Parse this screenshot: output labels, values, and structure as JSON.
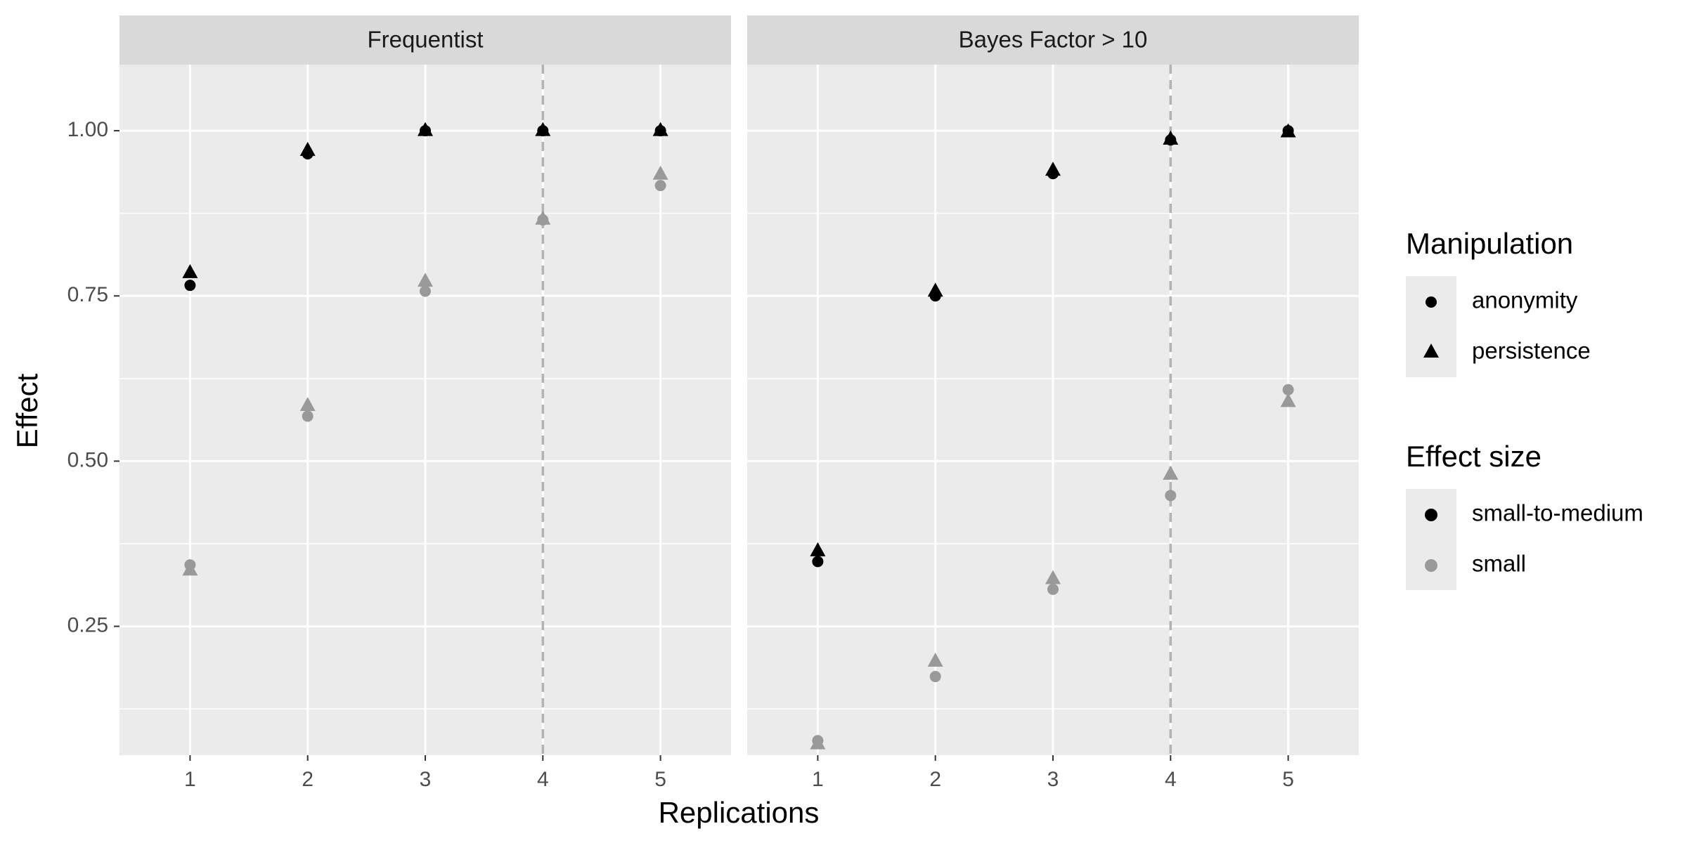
{
  "chart_data": {
    "type": "scatter",
    "xlabel": "Replications",
    "ylabel": "Effect",
    "x_ticks": [
      "1",
      "2",
      "3",
      "4",
      "5"
    ],
    "y_ticks": [
      "0.25",
      "0.50",
      "0.75",
      "1.00"
    ],
    "xlim": [
      0.4,
      5.6
    ],
    "ylim": [
      0.055,
      1.1
    ],
    "grid": true,
    "reference_line": {
      "x": 4,
      "style": "dashed"
    },
    "legend_placement": "right",
    "legends": [
      {
        "title": "Manipulation",
        "entries": [
          {
            "label": "anonymity",
            "shape": "circle"
          },
          {
            "label": "persistence",
            "shape": "triangle"
          }
        ]
      },
      {
        "title": "Effect size",
        "entries": [
          {
            "label": "small-to-medium",
            "color": "#000000"
          },
          {
            "label": "small",
            "color": "#999999"
          }
        ]
      }
    ],
    "colors": {
      "small-to-medium": "#000000",
      "small": "#999999"
    },
    "panels": [
      {
        "title": "Frequentist",
        "series": [
          {
            "manipulation": "anonymity",
            "effect_size": "small-to-medium",
            "x": [
              1,
              2,
              3,
              4,
              5
            ],
            "y": [
              0.766,
              0.965,
              1.0,
              1.0,
              1.0
            ]
          },
          {
            "manipulation": "persistence",
            "effect_size": "small-to-medium",
            "x": [
              1,
              2,
              3,
              4,
              5
            ],
            "y": [
              0.785,
              0.97,
              1.0,
              1.0,
              1.0
            ]
          },
          {
            "manipulation": "anonymity",
            "effect_size": "small",
            "x": [
              1,
              2,
              3,
              4,
              5
            ],
            "y": [
              0.343,
              0.568,
              0.757,
              0.865,
              0.917
            ]
          },
          {
            "manipulation": "persistence",
            "effect_size": "small",
            "x": [
              1,
              2,
              3,
              4,
              5
            ],
            "y": [
              0.335,
              0.584,
              0.772,
              0.866,
              0.934
            ]
          }
        ]
      },
      {
        "title": "Bayes Factor > 10",
        "series": [
          {
            "manipulation": "anonymity",
            "effect_size": "small-to-medium",
            "x": [
              1,
              2,
              3,
              4,
              5
            ],
            "y": [
              0.348,
              0.75,
              0.935,
              0.986,
              1.0
            ]
          },
          {
            "manipulation": "persistence",
            "effect_size": "small-to-medium",
            "x": [
              1,
              2,
              3,
              4,
              5
            ],
            "y": [
              0.364,
              0.757,
              0.94,
              0.987,
              0.998
            ]
          },
          {
            "manipulation": "anonymity",
            "effect_size": "small",
            "x": [
              1,
              2,
              3,
              4,
              5
            ],
            "y": [
              0.077,
              0.174,
              0.306,
              0.448,
              0.608
            ]
          },
          {
            "manipulation": "persistence",
            "effect_size": "small",
            "x": [
              1,
              2,
              3,
              4,
              5
            ],
            "y": [
              0.072,
              0.197,
              0.322,
              0.48,
              0.59
            ]
          }
        ]
      }
    ]
  }
}
